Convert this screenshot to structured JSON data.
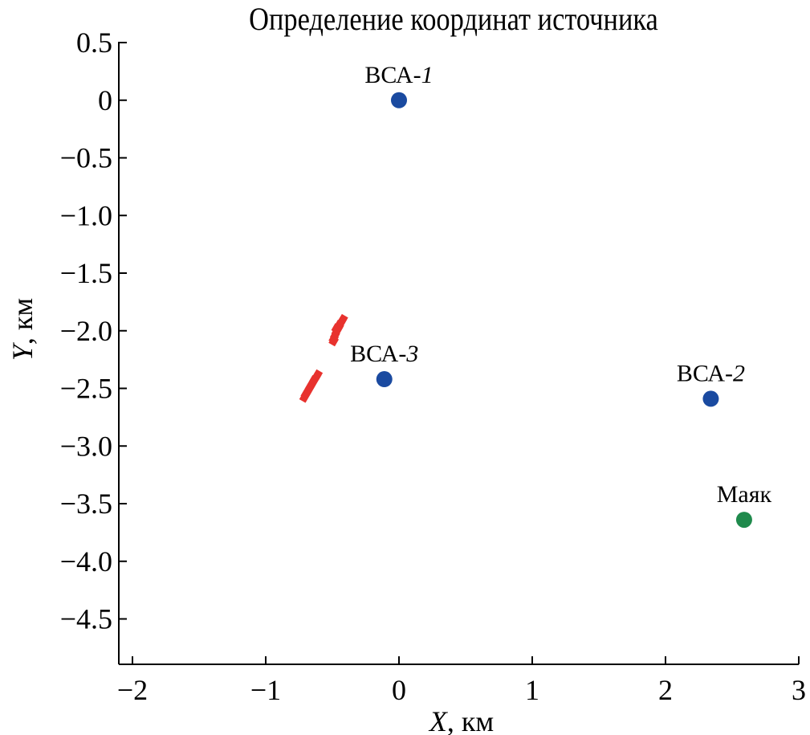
{
  "chart_data": {
    "type": "scatter",
    "title": "Определение координат источника",
    "xlabel": {
      "var": "X",
      "unit": ", км"
    },
    "ylabel": {
      "var": "Y",
      "unit": ", км"
    },
    "xlim": [
      -2.1,
      3
    ],
    "ylim": [
      -4.9,
      0.5
    ],
    "xticks": [
      -2,
      -1,
      0,
      1,
      2,
      3
    ],
    "xtick_labels": [
      "−2",
      "−1",
      "0",
      "1",
      "2",
      "3"
    ],
    "yticks": [
      0.5,
      0,
      -0.5,
      -1.0,
      -1.5,
      -2.0,
      -2.5,
      -3.0,
      -3.5,
      -4.0,
      -4.5
    ],
    "ytick_labels": [
      "0.5",
      "0",
      "−0.5",
      "−1.0",
      "−1.5",
      "−2.0",
      "−2.5",
      "−3.0",
      "−3.5",
      "−4.0",
      "−4.5"
    ],
    "grid": false,
    "stations": [
      {
        "name": "ВСА-",
        "num": "1",
        "x": 0.0,
        "y": 0.0,
        "color": "#1a4aa0"
      },
      {
        "name": "ВСА-",
        "num": "2",
        "x": 2.34,
        "y": -2.59,
        "color": "#1a4aa0"
      },
      {
        "name": "ВСА-",
        "num": "3",
        "x": -0.11,
        "y": -2.42,
        "color": "#1a4aa0"
      },
      {
        "name": "Маяк",
        "num": "",
        "x": 2.59,
        "y": -3.64,
        "color": "#1f8a4c"
      }
    ],
    "source_estimates": {
      "color": "#e8322e",
      "points": [
        [
          -0.42,
          -1.9
        ],
        [
          -0.43,
          -1.92
        ],
        [
          -0.44,
          -1.94
        ],
        [
          -0.45,
          -1.97
        ],
        [
          -0.46,
          -1.99
        ],
        [
          -0.47,
          -2.01
        ],
        [
          -0.48,
          -2.04
        ],
        [
          -0.49,
          -2.07
        ],
        [
          -0.49,
          -2.09
        ],
        [
          -0.45,
          -1.95
        ],
        [
          -0.47,
          -1.98
        ],
        [
          -0.61,
          -2.38
        ],
        [
          -0.62,
          -2.4
        ],
        [
          -0.64,
          -2.43
        ],
        [
          -0.65,
          -2.46
        ],
        [
          -0.67,
          -2.49
        ],
        [
          -0.68,
          -2.52
        ],
        [
          -0.7,
          -2.55
        ],
        [
          -0.71,
          -2.58
        ]
      ]
    }
  }
}
